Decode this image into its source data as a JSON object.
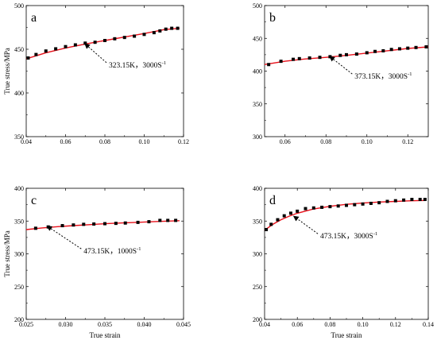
{
  "chart_data": [
    {
      "type": "line",
      "panel_label": "a",
      "xlabel": "",
      "ylabel": "True stress/MPa",
      "xlim": [
        0.04,
        0.12
      ],
      "ylim": [
        350,
        500
      ],
      "xticks": [
        0.04,
        0.06,
        0.08,
        0.1,
        0.12
      ],
      "xtick_labels": [
        "0.04",
        "0.06",
        "0.08",
        "0.10",
        "0.12"
      ],
      "yticks": [
        350,
        400,
        450,
        500
      ],
      "ytick_labels": [
        "350",
        "400",
        "450",
        "500"
      ],
      "annotation": {
        "text": "323.15K，3000S",
        "sup": "-1",
        "arrow_to": [
          0.07,
          456
        ],
        "text_at": [
          0.082,
          432
        ]
      },
      "series": [
        {
          "kind": "fit",
          "color": "#e8101a",
          "x": [
            0.04,
            0.05,
            0.06,
            0.07,
            0.08,
            0.09,
            0.1,
            0.11,
            0.118
          ],
          "y": [
            439,
            446,
            451.5,
            456,
            460,
            464,
            468,
            472.5,
            474
          ]
        },
        {
          "kind": "experiment",
          "color": "#000000",
          "x": [
            0.041,
            0.045,
            0.05,
            0.055,
            0.06,
            0.065,
            0.07,
            0.075,
            0.08,
            0.085,
            0.09,
            0.095,
            0.1,
            0.105,
            0.108,
            0.111,
            0.114,
            0.117
          ],
          "y": [
            440,
            444,
            448,
            450.5,
            453,
            455,
            457,
            458,
            460,
            462,
            463.5,
            465,
            467,
            469,
            471,
            473,
            474,
            474
          ]
        }
      ]
    },
    {
      "type": "line",
      "panel_label": "b",
      "xlabel": "",
      "ylabel": "",
      "xlim": [
        0.05,
        0.13
      ],
      "ylim": [
        300,
        500
      ],
      "xticks": [
        0.06,
        0.08,
        0.1,
        0.12
      ],
      "xtick_labels": [
        "0.06",
        "0.08",
        "0.10",
        "0.12"
      ],
      "yticks": [
        300,
        350,
        400,
        450,
        500
      ],
      "ytick_labels": [
        "300",
        "350",
        "400",
        "450",
        "500"
      ],
      "annotation": {
        "text": "373.15K，3000S",
        "sup": "-1",
        "arrow_to": [
          0.082,
          422
        ],
        "text_at": [
          0.094,
          392
        ]
      },
      "series": [
        {
          "kind": "fit",
          "color": "#e8101a",
          "x": [
            0.05,
            0.06,
            0.07,
            0.08,
            0.09,
            0.1,
            0.11,
            0.12,
            0.13
          ],
          "y": [
            410,
            415,
            418.5,
            421,
            424,
            427.5,
            431,
            434.5,
            437
          ]
        },
        {
          "kind": "experiment",
          "color": "#000000",
          "x": [
            0.052,
            0.058,
            0.064,
            0.067,
            0.072,
            0.077,
            0.082,
            0.087,
            0.09,
            0.095,
            0.1,
            0.104,
            0.108,
            0.112,
            0.116,
            0.12,
            0.124,
            0.129
          ],
          "y": [
            410,
            415,
            418,
            419,
            420,
            421,
            422,
            424,
            425,
            426,
            428,
            430,
            431,
            433,
            434,
            435,
            436,
            437
          ]
        }
      ]
    },
    {
      "type": "line",
      "panel_label": "c",
      "xlabel": "True strain",
      "ylabel": "True stress/MPa",
      "xlim": [
        0.025,
        0.045
      ],
      "ylim": [
        200,
        400
      ],
      "xticks": [
        0.025,
        0.03,
        0.035,
        0.04,
        0.045
      ],
      "xtick_labels": [
        "0.025",
        "0.030",
        "0.035",
        "0.040",
        "0.045"
      ],
      "yticks": [
        200,
        250,
        300,
        350,
        400
      ],
      "ytick_labels": [
        "200",
        "250",
        "300",
        "350",
        "400"
      ],
      "annotation": {
        "text": "473.15K，1000S",
        "sup": "-1",
        "arrow_to": [
          0.0277,
          342
        ],
        "text_at": [
          0.0323,
          304
        ]
      },
      "series": [
        {
          "kind": "fit",
          "color": "#e8101a",
          "x": [
            0.025,
            0.027,
            0.029,
            0.031,
            0.033,
            0.035,
            0.037,
            0.039,
            0.041,
            0.043,
            0.0445
          ],
          "y": [
            337,
            339.5,
            341.5,
            343,
            344.5,
            346,
            347,
            348,
            349,
            350,
            350.5
          ]
        },
        {
          "kind": "experiment",
          "color": "#000000",
          "x": [
            0.0262,
            0.0278,
            0.0296,
            0.031,
            0.0323,
            0.0336,
            0.035,
            0.0364,
            0.0376,
            0.0392,
            0.0406,
            0.042,
            0.043,
            0.044
          ],
          "y": [
            339,
            341,
            343,
            344,
            345,
            345.5,
            346,
            346.5,
            347,
            348,
            349,
            351,
            351,
            351
          ]
        }
      ]
    },
    {
      "type": "line",
      "panel_label": "d",
      "xlabel": "True strain",
      "ylabel": "",
      "xlim": [
        0.04,
        0.14
      ],
      "ylim": [
        200,
        400
      ],
      "xticks": [
        0.04,
        0.06,
        0.08,
        0.1,
        0.12,
        0.14
      ],
      "xtick_labels": [
        "0.04",
        "0.06",
        "0.08",
        "0.10",
        "0.12",
        "0.14"
      ],
      "yticks": [
        200,
        250,
        300,
        350,
        400
      ],
      "ytick_labels": [
        "200",
        "250",
        "300",
        "350",
        "400"
      ],
      "annotation": {
        "text": "473.15K，3000S",
        "sup": "-1",
        "arrow_to": [
          0.058,
          357
        ],
        "text_at": [
          0.074,
          327
        ]
      },
      "series": [
        {
          "kind": "fit",
          "color": "#e8101a",
          "x": [
            0.04,
            0.045,
            0.05,
            0.055,
            0.06,
            0.07,
            0.08,
            0.09,
            0.1,
            0.11,
            0.12,
            0.13,
            0.138
          ],
          "y": [
            336,
            345,
            352,
            357.5,
            362,
            368.5,
            372.5,
            375.5,
            377.5,
            379,
            380,
            381,
            381.5
          ]
        },
        {
          "kind": "experiment",
          "color": "#000000",
          "x": [
            0.041,
            0.044,
            0.048,
            0.052,
            0.056,
            0.06,
            0.065,
            0.07,
            0.075,
            0.08,
            0.085,
            0.09,
            0.095,
            0.1,
            0.105,
            0.11,
            0.115,
            0.12,
            0.125,
            0.13,
            0.135,
            0.138
          ],
          "y": [
            337,
            345,
            352,
            358,
            362,
            365,
            369,
            370,
            371,
            372,
            373,
            374,
            375,
            376,
            377,
            378,
            380,
            381,
            382,
            383,
            383,
            383
          ]
        }
      ]
    }
  ]
}
